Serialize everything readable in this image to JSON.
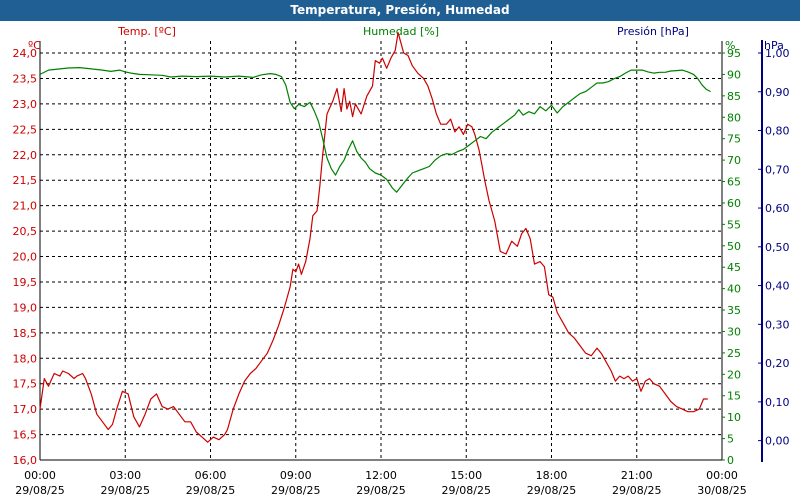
{
  "title": "Temperatura, Presión, Humedad",
  "colors": {
    "temp": "#cc0000",
    "hum": "#008000",
    "pres": "#000080",
    "header": "#1f5f94"
  },
  "chart_data": {
    "type": "line",
    "title": "Temperatura, Presión, Humedad",
    "grid": true,
    "x_ticks": [
      {
        "time": "00:00",
        "date": "29/08/25"
      },
      {
        "time": "03:00",
        "date": "29/08/25"
      },
      {
        "time": "06:00",
        "date": "29/08/25"
      },
      {
        "time": "09:00",
        "date": "29/08/25"
      },
      {
        "time": "12:00",
        "date": "29/08/25"
      },
      {
        "time": "15:00",
        "date": "29/08/25"
      },
      {
        "time": "18:00",
        "date": "29/08/25"
      },
      {
        "time": "21:00",
        "date": "29/08/25"
      },
      {
        "time": "00:00",
        "date": "30/08/25"
      }
    ],
    "x_range_hours": [
      0,
      24
    ],
    "axes": {
      "temp": {
        "label": "Temp. [ºC]",
        "unit": "ºC",
        "range": [
          16.0,
          24.0
        ],
        "ticks": [
          "16,0",
          "16,5",
          "17,0",
          "17,5",
          "18,0",
          "18,5",
          "19,0",
          "19,5",
          "20,0",
          "20,5",
          "21,0",
          "21,5",
          "22,0",
          "22,5",
          "23,0",
          "23,5",
          "24,0"
        ]
      },
      "hum": {
        "label": "Humedad [%]",
        "unit": "%",
        "range": [
          0,
          95
        ],
        "ticks": [
          "0",
          "5",
          "10",
          "15",
          "20",
          "25",
          "30",
          "35",
          "40",
          "45",
          "50",
          "55",
          "60",
          "65",
          "70",
          "75",
          "80",
          "85",
          "90",
          "95"
        ]
      },
      "pres": {
        "label": "Presión [hPa]",
        "unit": "hPa",
        "range": [
          -0.05,
          1.0
        ],
        "ticks": [
          "0,00",
          "0,10",
          "0,20",
          "0,30",
          "0,40",
          "0,50",
          "0,60",
          "0,70",
          "0,80",
          "0,90",
          "1,00"
        ]
      }
    },
    "series": [
      {
        "name": "Temp. [ºC]",
        "axis": "temp",
        "points": [
          [
            0.0,
            17.0
          ],
          [
            0.15,
            17.6
          ],
          [
            0.3,
            17.45
          ],
          [
            0.5,
            17.7
          ],
          [
            0.7,
            17.65
          ],
          [
            0.8,
            17.75
          ],
          [
            1.0,
            17.7
          ],
          [
            1.2,
            17.6
          ],
          [
            1.3,
            17.65
          ],
          [
            1.5,
            17.7
          ],
          [
            1.6,
            17.6
          ],
          [
            1.8,
            17.3
          ],
          [
            2.0,
            16.9
          ],
          [
            2.2,
            16.75
          ],
          [
            2.4,
            16.6
          ],
          [
            2.55,
            16.7
          ],
          [
            2.7,
            17.0
          ],
          [
            2.9,
            17.35
          ],
          [
            3.1,
            17.3
          ],
          [
            3.3,
            16.85
          ],
          [
            3.5,
            16.65
          ],
          [
            3.7,
            16.9
          ],
          [
            3.9,
            17.2
          ],
          [
            4.1,
            17.3
          ],
          [
            4.3,
            17.05
          ],
          [
            4.5,
            17.0
          ],
          [
            4.7,
            17.05
          ],
          [
            4.9,
            16.9
          ],
          [
            5.1,
            16.75
          ],
          [
            5.3,
            16.75
          ],
          [
            5.5,
            16.55
          ],
          [
            5.7,
            16.45
          ],
          [
            5.9,
            16.35
          ],
          [
            6.1,
            16.45
          ],
          [
            6.3,
            16.4
          ],
          [
            6.5,
            16.5
          ],
          [
            6.6,
            16.6
          ],
          [
            6.8,
            17.0
          ],
          [
            7.0,
            17.3
          ],
          [
            7.2,
            17.55
          ],
          [
            7.4,
            17.7
          ],
          [
            7.6,
            17.8
          ],
          [
            7.8,
            17.95
          ],
          [
            8.0,
            18.1
          ],
          [
            8.2,
            18.35
          ],
          [
            8.4,
            18.65
          ],
          [
            8.6,
            19.0
          ],
          [
            8.8,
            19.4
          ],
          [
            8.9,
            19.75
          ],
          [
            9.0,
            19.7
          ],
          [
            9.1,
            19.85
          ],
          [
            9.2,
            19.65
          ],
          [
            9.35,
            19.9
          ],
          [
            9.5,
            20.35
          ],
          [
            9.6,
            20.8
          ],
          [
            9.75,
            20.9
          ],
          [
            9.85,
            21.4
          ],
          [
            9.95,
            22.0
          ],
          [
            10.1,
            22.8
          ],
          [
            10.3,
            23.05
          ],
          [
            10.45,
            23.3
          ],
          [
            10.6,
            22.85
          ],
          [
            10.7,
            23.3
          ],
          [
            10.8,
            22.9
          ],
          [
            10.9,
            23.05
          ],
          [
            11.0,
            22.75
          ],
          [
            11.1,
            23.0
          ],
          [
            11.3,
            22.8
          ],
          [
            11.5,
            23.15
          ],
          [
            11.7,
            23.35
          ],
          [
            11.8,
            23.85
          ],
          [
            11.95,
            23.8
          ],
          [
            12.05,
            23.9
          ],
          [
            12.2,
            23.7
          ],
          [
            12.35,
            23.9
          ],
          [
            12.5,
            24.05
          ],
          [
            12.6,
            24.4
          ],
          [
            12.7,
            24.2
          ],
          [
            12.8,
            24.0
          ],
          [
            12.95,
            23.95
          ],
          [
            13.1,
            23.75
          ],
          [
            13.3,
            23.6
          ],
          [
            13.5,
            23.5
          ],
          [
            13.65,
            23.35
          ],
          [
            13.8,
            23.1
          ],
          [
            13.95,
            22.8
          ],
          [
            14.1,
            22.6
          ],
          [
            14.3,
            22.6
          ],
          [
            14.45,
            22.7
          ],
          [
            14.6,
            22.45
          ],
          [
            14.75,
            22.55
          ],
          [
            14.9,
            22.4
          ],
          [
            15.05,
            22.6
          ],
          [
            15.2,
            22.55
          ],
          [
            15.3,
            22.4
          ],
          [
            15.45,
            22.1
          ],
          [
            15.55,
            21.8
          ],
          [
            15.65,
            21.5
          ],
          [
            15.8,
            21.1
          ],
          [
            16.0,
            20.7
          ],
          [
            16.2,
            20.1
          ],
          [
            16.4,
            20.05
          ],
          [
            16.6,
            20.3
          ],
          [
            16.8,
            20.2
          ],
          [
            16.95,
            20.45
          ],
          [
            17.1,
            20.55
          ],
          [
            17.25,
            20.35
          ],
          [
            17.4,
            19.85
          ],
          [
            17.6,
            19.9
          ],
          [
            17.75,
            19.8
          ],
          [
            17.9,
            19.25
          ],
          [
            18.05,
            19.2
          ],
          [
            18.2,
            18.9
          ],
          [
            18.4,
            18.7
          ],
          [
            18.6,
            18.5
          ],
          [
            18.8,
            18.4
          ],
          [
            19.0,
            18.25
          ],
          [
            19.2,
            18.1
          ],
          [
            19.4,
            18.05
          ],
          [
            19.6,
            18.2
          ],
          [
            19.75,
            18.1
          ],
          [
            19.9,
            17.95
          ],
          [
            20.1,
            17.75
          ],
          [
            20.25,
            17.55
          ],
          [
            20.4,
            17.65
          ],
          [
            20.55,
            17.6
          ],
          [
            20.7,
            17.65
          ],
          [
            20.85,
            17.55
          ],
          [
            21.0,
            17.6
          ],
          [
            21.15,
            17.35
          ],
          [
            21.3,
            17.55
          ],
          [
            21.45,
            17.6
          ],
          [
            21.6,
            17.5
          ],
          [
            21.8,
            17.45
          ],
          [
            22.0,
            17.3
          ],
          [
            22.2,
            17.15
          ],
          [
            22.4,
            17.05
          ],
          [
            22.6,
            17.0
          ],
          [
            22.8,
            16.95
          ],
          [
            23.0,
            16.95
          ],
          [
            23.2,
            17.0
          ],
          [
            23.35,
            17.2
          ],
          [
            23.5,
            17.2
          ]
        ]
      },
      {
        "name": "Humedad [%]",
        "axis": "hum",
        "points": [
          [
            0.0,
            90.0
          ],
          [
            0.3,
            91.0
          ],
          [
            0.7,
            91.3
          ],
          [
            1.0,
            91.5
          ],
          [
            1.4,
            91.6
          ],
          [
            1.8,
            91.3
          ],
          [
            2.2,
            91.0
          ],
          [
            2.5,
            90.7
          ],
          [
            2.8,
            91.0
          ],
          [
            3.0,
            90.6
          ],
          [
            3.2,
            90.3
          ],
          [
            3.5,
            90.0
          ],
          [
            3.9,
            89.9
          ],
          [
            4.3,
            89.8
          ],
          [
            4.6,
            89.4
          ],
          [
            5.0,
            89.6
          ],
          [
            5.5,
            89.5
          ],
          [
            6.0,
            89.6
          ],
          [
            6.5,
            89.4
          ],
          [
            7.0,
            89.6
          ],
          [
            7.5,
            89.3
          ],
          [
            7.8,
            89.9
          ],
          [
            8.1,
            90.2
          ],
          [
            8.3,
            90.0
          ],
          [
            8.5,
            89.5
          ],
          [
            8.65,
            87.5
          ],
          [
            8.8,
            83.5
          ],
          [
            8.95,
            82.0
          ],
          [
            9.1,
            83.0
          ],
          [
            9.3,
            82.5
          ],
          [
            9.5,
            83.5
          ],
          [
            9.65,
            81.5
          ],
          [
            9.8,
            79.0
          ],
          [
            9.95,
            75.0
          ],
          [
            10.1,
            70.5
          ],
          [
            10.25,
            68.0
          ],
          [
            10.4,
            66.5
          ],
          [
            10.55,
            68.5
          ],
          [
            10.7,
            70.0
          ],
          [
            10.85,
            72.5
          ],
          [
            11.0,
            74.5
          ],
          [
            11.15,
            72.0
          ],
          [
            11.3,
            70.5
          ],
          [
            11.45,
            69.5
          ],
          [
            11.6,
            68.0
          ],
          [
            11.8,
            67.0
          ],
          [
            12.0,
            66.5
          ],
          [
            12.2,
            65.5
          ],
          [
            12.4,
            63.5
          ],
          [
            12.55,
            62.5
          ],
          [
            12.7,
            63.8
          ],
          [
            12.9,
            65.5
          ],
          [
            13.1,
            67.0
          ],
          [
            13.3,
            67.5
          ],
          [
            13.5,
            68.0
          ],
          [
            13.7,
            68.5
          ],
          [
            13.9,
            70.0
          ],
          [
            14.1,
            71.0
          ],
          [
            14.3,
            71.5
          ],
          [
            14.5,
            71.3
          ],
          [
            14.7,
            72.0
          ],
          [
            14.9,
            72.5
          ],
          [
            15.1,
            73.5
          ],
          [
            15.3,
            74.5
          ],
          [
            15.5,
            75.5
          ],
          [
            15.7,
            75.0
          ],
          [
            15.9,
            76.5
          ],
          [
            16.1,
            77.5
          ],
          [
            16.3,
            78.5
          ],
          [
            16.5,
            79.5
          ],
          [
            16.7,
            80.5
          ],
          [
            16.85,
            81.8
          ],
          [
            17.0,
            80.5
          ],
          [
            17.2,
            81.3
          ],
          [
            17.4,
            80.8
          ],
          [
            17.6,
            82.5
          ],
          [
            17.8,
            81.5
          ],
          [
            18.0,
            82.8
          ],
          [
            18.2,
            81.0
          ],
          [
            18.4,
            82.5
          ],
          [
            18.6,
            83.5
          ],
          [
            18.8,
            84.5
          ],
          [
            19.0,
            85.5
          ],
          [
            19.2,
            86.0
          ],
          [
            19.4,
            87.0
          ],
          [
            19.6,
            88.0
          ],
          [
            19.8,
            88.0
          ],
          [
            20.0,
            88.3
          ],
          [
            20.2,
            89.0
          ],
          [
            20.4,
            89.5
          ],
          [
            20.6,
            90.3
          ],
          [
            20.8,
            91.0
          ],
          [
            21.0,
            91.0
          ],
          [
            21.2,
            91.0
          ],
          [
            21.4,
            90.6
          ],
          [
            21.6,
            90.3
          ],
          [
            21.8,
            90.5
          ],
          [
            22.0,
            90.5
          ],
          [
            22.2,
            90.8
          ],
          [
            22.4,
            90.9
          ],
          [
            22.6,
            91.0
          ],
          [
            22.8,
            90.6
          ],
          [
            23.0,
            90.0
          ],
          [
            23.15,
            89.0
          ],
          [
            23.3,
            87.5
          ],
          [
            23.45,
            86.5
          ],
          [
            23.6,
            86.0
          ]
        ]
      }
    ]
  }
}
